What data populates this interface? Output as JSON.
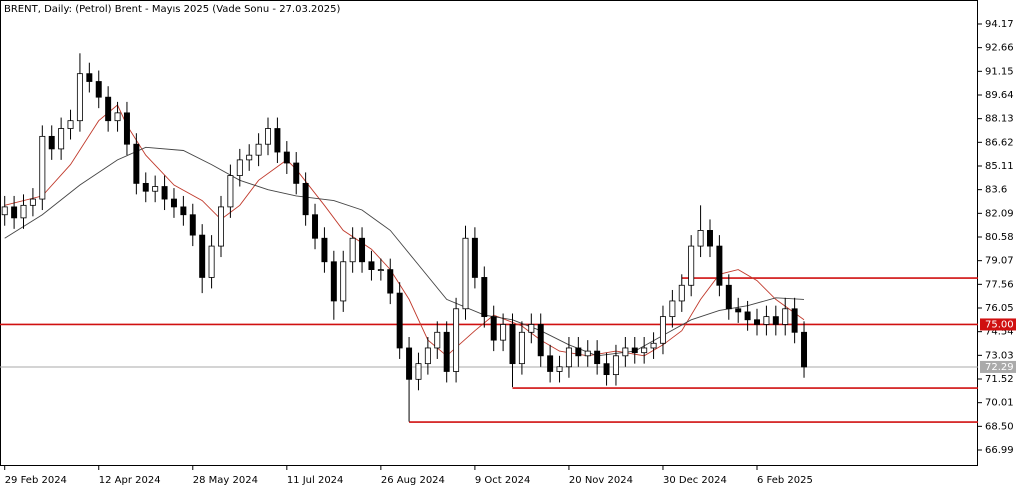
{
  "chart_data": {
    "type": "candlestick",
    "title": "BRENT, Daily:  (Petrol) Brent - Mayıs 2025 (Vade Sonu - 27.03.2025)",
    "open": [
      82.0,
      82.5,
      81.8,
      82.6,
      83.0,
      87.0,
      86.2,
      87.5,
      88.0,
      91.0,
      90.5,
      89.5,
      88.0,
      88.5,
      86.5,
      84.0,
      83.5,
      83.8,
      83.0,
      82.5,
      82.0,
      80.7,
      78.0,
      80.0,
      82.5,
      84.5,
      85.5,
      85.8,
      86.5,
      87.5,
      86.0,
      85.3,
      84.0,
      82.0,
      80.5,
      79.0,
      76.5,
      79.0,
      80.5,
      79.0,
      78.5,
      78.5,
      77.0,
      73.5,
      71.5,
      72.5,
      73.5,
      74.5,
      72.0,
      76.0,
      80.5,
      78.0,
      75.5,
      74.0,
      75.0,
      72.5,
      74.5,
      75.0,
      73.0,
      72.0,
      72.3,
      73.5,
      73.0,
      73.3,
      72.5,
      71.8,
      73.0,
      73.5,
      73.2,
      73.5,
      73.8,
      75.5,
      76.5,
      77.5,
      80.0,
      81.0,
      80.0,
      77.5,
      76.0,
      75.8,
      75.3,
      75.0,
      75.5,
      75.0,
      76.0,
      74.5
    ],
    "high": [
      83.2,
      83.2,
      83.3,
      83.7,
      87.7,
      87.7,
      88.2,
      88.7,
      92.3,
      91.7,
      91.2,
      90.2,
      89.2,
      89.2,
      87.2,
      84.7,
      84.5,
      84.5,
      83.7,
      83.2,
      82.7,
      81.4,
      80.7,
      83.2,
      85.2,
      86.2,
      86.5,
      87.2,
      88.2,
      88.2,
      86.7,
      86.0,
      84.7,
      82.7,
      81.2,
      79.7,
      79.7,
      81.2,
      81.2,
      79.7,
      79.2,
      79.2,
      77.7,
      74.2,
      73.2,
      74.2,
      75.2,
      75.2,
      76.7,
      81.3,
      81.2,
      78.7,
      76.2,
      75.7,
      75.7,
      75.2,
      75.7,
      75.7,
      73.7,
      73.0,
      74.2,
      74.2,
      74.0,
      74.0,
      73.2,
      73.7,
      74.2,
      74.2,
      74.2,
      74.5,
      76.2,
      77.2,
      78.2,
      80.7,
      82.6,
      81.7,
      80.7,
      78.2,
      76.7,
      76.5,
      76.0,
      76.2,
      76.2,
      76.7,
      76.7,
      75.2
    ],
    "low": [
      81.3,
      81.1,
      81.1,
      81.9,
      82.3,
      85.5,
      85.5,
      86.8,
      87.3,
      89.8,
      88.8,
      87.3,
      87.3,
      85.8,
      83.3,
      82.8,
      82.8,
      82.3,
      81.8,
      81.3,
      80.0,
      77.0,
      77.3,
      79.3,
      81.8,
      83.8,
      84.8,
      85.1,
      85.8,
      85.3,
      84.6,
      83.3,
      81.3,
      79.8,
      78.3,
      75.3,
      75.8,
      78.3,
      78.3,
      77.8,
      77.8,
      76.3,
      72.8,
      68.8,
      70.8,
      71.8,
      72.8,
      71.3,
      71.3,
      75.3,
      77.3,
      74.8,
      73.3,
      73.3,
      71.0,
      71.8,
      73.8,
      72.3,
      71.3,
      71.3,
      71.6,
      72.3,
      72.3,
      71.8,
      71.1,
      71.1,
      72.3,
      72.5,
      72.5,
      72.8,
      73.1,
      74.8,
      75.8,
      76.8,
      79.3,
      79.3,
      76.8,
      75.3,
      75.1,
      74.6,
      74.3,
      74.3,
      74.3,
      74.3,
      73.8,
      71.6
    ],
    "close": [
      82.5,
      81.8,
      82.6,
      83.0,
      87.0,
      86.2,
      87.5,
      88.0,
      91.0,
      90.5,
      89.5,
      88.0,
      88.5,
      86.5,
      84.0,
      83.5,
      83.8,
      83.0,
      82.5,
      82.0,
      80.7,
      78.0,
      80.0,
      82.5,
      84.5,
      85.5,
      85.8,
      86.5,
      87.5,
      86.0,
      85.3,
      84.0,
      82.0,
      80.5,
      79.0,
      76.5,
      79.0,
      80.5,
      79.0,
      78.5,
      78.5,
      77.0,
      73.5,
      71.5,
      72.5,
      73.5,
      74.5,
      72.0,
      76.0,
      80.5,
      78.0,
      75.5,
      74.0,
      75.0,
      72.5,
      74.5,
      75.0,
      73.0,
      72.0,
      72.3,
      73.5,
      73.0,
      73.3,
      72.5,
      71.8,
      73.0,
      73.5,
      73.2,
      73.5,
      73.8,
      75.5,
      76.5,
      77.5,
      80.0,
      81.0,
      80.0,
      77.5,
      76.0,
      75.8,
      75.3,
      75.0,
      75.5,
      75.0,
      76.0,
      74.5,
      72.29
    ],
    "color": "#000000",
    "lines": [
      {
        "color": "#c0392b",
        "x": [
          0,
          4,
          7,
          10,
          12,
          13,
          15,
          18,
          21,
          23,
          25,
          27,
          30,
          31,
          34,
          36,
          39,
          41,
          43,
          45,
          47,
          50,
          52,
          55,
          57,
          59,
          62,
          65,
          68,
          70,
          72,
          74,
          76,
          78,
          80,
          82,
          85
        ],
        "values": [
          82.6,
          83.2,
          85.2,
          88.0,
          89.0,
          87.7,
          85.8,
          83.9,
          82.9,
          81.7,
          82.6,
          84.2,
          85.5,
          84.9,
          82.6,
          81.0,
          79.8,
          78.5,
          76.6,
          74.0,
          73.0,
          74.6,
          75.6,
          74.9,
          74.0,
          73.3,
          73.0,
          73.3,
          73.0,
          73.7,
          74.6,
          76.6,
          78.2,
          78.5,
          77.8,
          76.6,
          75.3
        ]
      },
      {
        "color": "#444444",
        "x": [
          0,
          4,
          8,
          12,
          15,
          19,
          22,
          25,
          28,
          31,
          35,
          38,
          41,
          44,
          47,
          51,
          54,
          57,
          60,
          63,
          67,
          70,
          73,
          76,
          79,
          82,
          85
        ],
        "values": [
          80.5,
          82.0,
          83.9,
          85.5,
          86.3,
          86.1,
          85.2,
          84.2,
          83.6,
          83.2,
          82.9,
          82.3,
          81.0,
          78.8,
          76.6,
          75.6,
          75.3,
          74.6,
          73.7,
          73.0,
          73.3,
          74.3,
          75.3,
          75.9,
          76.2,
          76.7,
          76.6
        ]
      }
    ],
    "hlines": [
      {
        "value": 75.0,
        "label": "75.00",
        "start": -0.5,
        "color": "#d01010"
      },
      {
        "value": 77.96,
        "start": 72,
        "color": "#d01010"
      },
      {
        "value": 70.94,
        "start": 54,
        "color": "#d01010"
      },
      {
        "value": 68.77,
        "start": 43,
        "color": "#d01010"
      }
    ],
    "last_price": {
      "value": 72.29,
      "label": "72.29",
      "color": "#aaaaaa"
    },
    "xlim": [
      -0.5,
      103.5
    ],
    "ylim": [
      65.97,
      95.7
    ],
    "xticks": [
      {
        "value": 0,
        "label": "29 Feb 2024"
      },
      {
        "value": 10,
        "label": "12 Apr 2024"
      },
      {
        "value": 20,
        "label": "28 May 2024"
      },
      {
        "value": 30,
        "label": "11 Jul 2024"
      },
      {
        "value": 40,
        "label": "26 Aug 2024"
      },
      {
        "value": 50,
        "label": "9 Oct 2024"
      },
      {
        "value": 60,
        "label": "20 Nov 2024"
      },
      {
        "value": 70,
        "label": "30 Dec 2024"
      },
      {
        "value": 80,
        "label": "6 Feb 2025"
      }
    ],
    "yticks": [
      94.17,
      92.66,
      91.15,
      89.64,
      88.13,
      86.62,
      85.11,
      83.6,
      82.09,
      80.58,
      79.07,
      77.56,
      76.05,
      74.54,
      73.03,
      71.52,
      70.01,
      {
        "value": 68.5,
        "label": "68.50"
      },
      66.99
    ]
  }
}
